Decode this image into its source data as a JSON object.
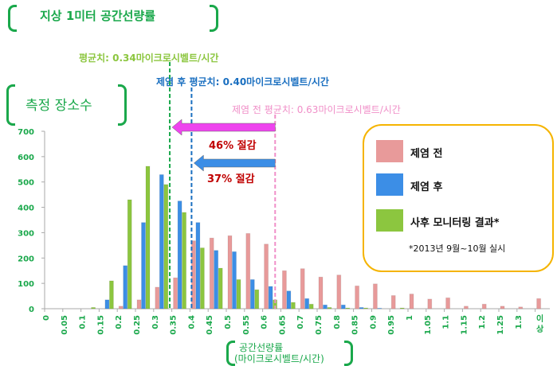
{
  "title": "지상 1미터 공간선량률",
  "y_title": "측정 장소수",
  "x_title_line1": "공간선량률",
  "x_title_line2": "(마이크로시벨트/시간)",
  "annotations": {
    "monitoring_mean": "평균치: 0.34마이크로시벨트/시간",
    "after_mean": "제염 후 평균치: 0.40마이크로시벨트/시간",
    "before_mean": "제염 전 평균치: 0.63마이크로시벨트/시간",
    "reduction_46": "46% 절감",
    "reduction_37": "37% 절감"
  },
  "legend": {
    "items": [
      "제염 전",
      "제염 후",
      "사후 모니터링 결과*"
    ],
    "note": "*2013년 9월~10월 실시"
  },
  "colors": {
    "before": "#e89a9a",
    "after": "#3c8ee6",
    "monitoring": "#8cc63f",
    "accent": "#1aa84b",
    "reduction_text": "#c00000",
    "arrow_46": "#ee44ee",
    "border": "#f5b400"
  },
  "chart_data": {
    "type": "bar",
    "grid": false,
    "legend_placement": "right",
    "ylim": [
      0,
      700
    ],
    "yticks": [
      "0",
      "100",
      "200",
      "300",
      "400",
      "500",
      "600",
      "700"
    ],
    "mean_lines": {
      "monitoring": 0.34,
      "after": 0.4,
      "before": 0.63
    },
    "categories": [
      "0",
      "0.05",
      "0.1",
      "0.15",
      "0.2",
      "0.25",
      "0.3",
      "0.35",
      "0.4",
      "0.45",
      "0.5",
      "0.55",
      "0.6",
      "0.65",
      "0.7",
      "0.75",
      "0.8",
      "0.85",
      "0.9",
      "0.95",
      "1",
      "1.05",
      "1.1",
      "1.15",
      "1.2",
      "1.25",
      "1.3",
      "이상"
    ],
    "series": [
      {
        "name": "제염 전",
        "values": [
          0,
          0,
          0,
          0,
          10,
          35,
          85,
          122,
          268,
          279,
          288,
          297,
          255,
          150,
          158,
          125,
          133,
          90,
          98,
          52,
          58,
          38,
          43,
          10,
          18,
          10,
          7,
          40
        ]
      },
      {
        "name": "제염 후",
        "values": [
          0,
          0,
          0,
          35,
          170,
          340,
          529,
          425,
          340,
          230,
          225,
          115,
          88,
          70,
          40,
          15,
          15,
          5,
          2,
          0,
          0,
          0,
          0,
          0,
          0,
          0,
          0,
          0
        ]
      },
      {
        "name": "사후 모니터링 결과*",
        "values": [
          0,
          0,
          5,
          110,
          430,
          562,
          490,
          380,
          240,
          160,
          115,
          75,
          35,
          25,
          18,
          5,
          3,
          3,
          0,
          3,
          0,
          0,
          0,
          0,
          0,
          0,
          0,
          0
        ]
      }
    ]
  }
}
